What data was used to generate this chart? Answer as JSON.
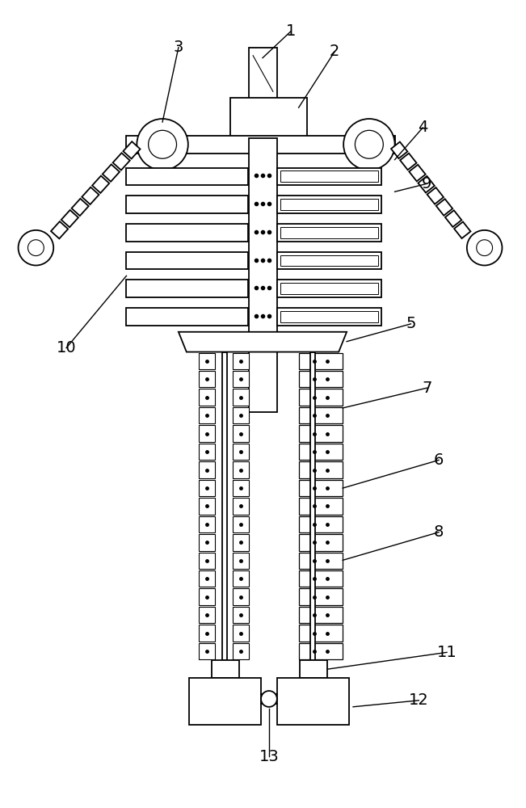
{
  "bg_color": "#ffffff",
  "line_color": "#000000",
  "fig_width": 6.51,
  "fig_height": 10.0,
  "label_fontsize": 14
}
